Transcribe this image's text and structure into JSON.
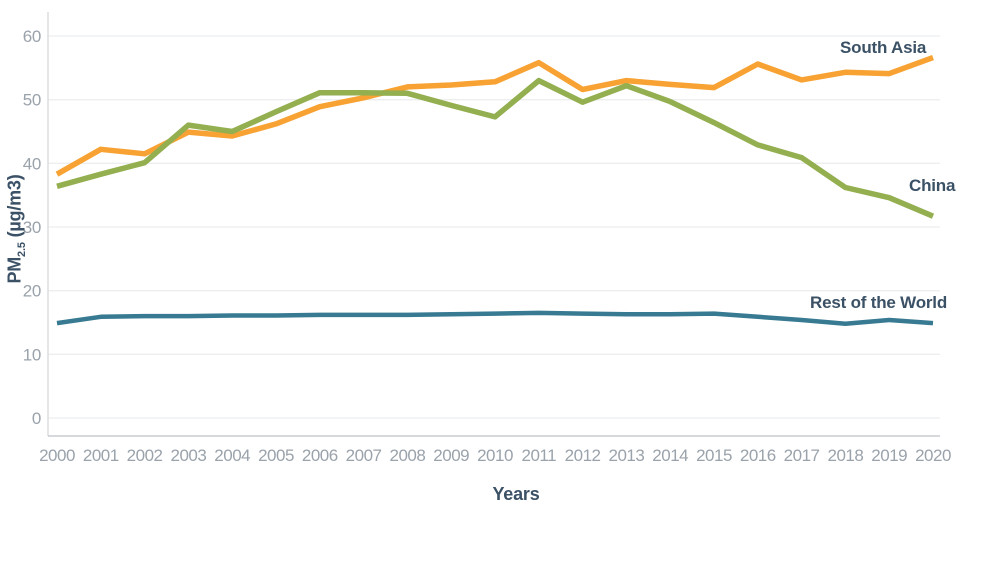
{
  "chart_data": {
    "type": "line",
    "title": "",
    "xlabel": "Years",
    "ylabel": "PM2.5 (µg/m3)",
    "x": [
      2000,
      2001,
      2002,
      2003,
      2004,
      2005,
      2006,
      2007,
      2008,
      2009,
      2010,
      2011,
      2012,
      2013,
      2014,
      2015,
      2016,
      2017,
      2018,
      2019,
      2020
    ],
    "ylim": [
      0,
      60
    ],
    "yticks": [
      0,
      10,
      20,
      30,
      40,
      50,
      60
    ],
    "grid": "horizontal light-gray gridlines",
    "legend_position": "direct labels at right side of lines",
    "series": [
      {
        "name": "South Asia",
        "color": "#F7A233",
        "values": [
          38.3,
          42.2,
          41.5,
          44.9,
          44.3,
          46.2,
          48.9,
          50.3,
          52.0,
          52.3,
          52.8,
          55.8,
          51.6,
          53.0,
          52.4,
          51.9,
          55.6,
          53.1,
          54.3,
          54.1,
          56.6
        ]
      },
      {
        "name": "China",
        "color": "#93AF50",
        "values": [
          36.4,
          38.3,
          40.1,
          46.0,
          45.0,
          48.1,
          51.1,
          51.1,
          51.0,
          49.1,
          47.3,
          53.0,
          49.6,
          52.2,
          49.7,
          46.4,
          42.9,
          40.9,
          36.2,
          34.6,
          31.7
        ]
      },
      {
        "name": "Rest of the World",
        "color": "#377A91",
        "values": [
          14.9,
          15.9,
          16.0,
          16.0,
          16.1,
          16.1,
          16.2,
          16.2,
          16.2,
          16.3,
          16.4,
          16.5,
          16.4,
          16.3,
          16.3,
          16.4,
          15.9,
          15.4,
          14.8,
          15.4,
          14.9
        ]
      }
    ]
  },
  "axes": {
    "x_title": "Years",
    "y_title": {
      "prefix": "PM",
      "sub": "2.5",
      "suffix": " (µg/m3)"
    }
  },
  "colors": {
    "south_asia": "#F7A233",
    "china": "#93AF50",
    "rest_of_world": "#377A91",
    "label_text": "#3B5166",
    "tick_text": "#9AA2AB",
    "gridline": "#ECEEEF",
    "spine_left": "#D9DCDE",
    "spine_bottom": "#C8CCD0",
    "background": "#FFFFFF"
  }
}
